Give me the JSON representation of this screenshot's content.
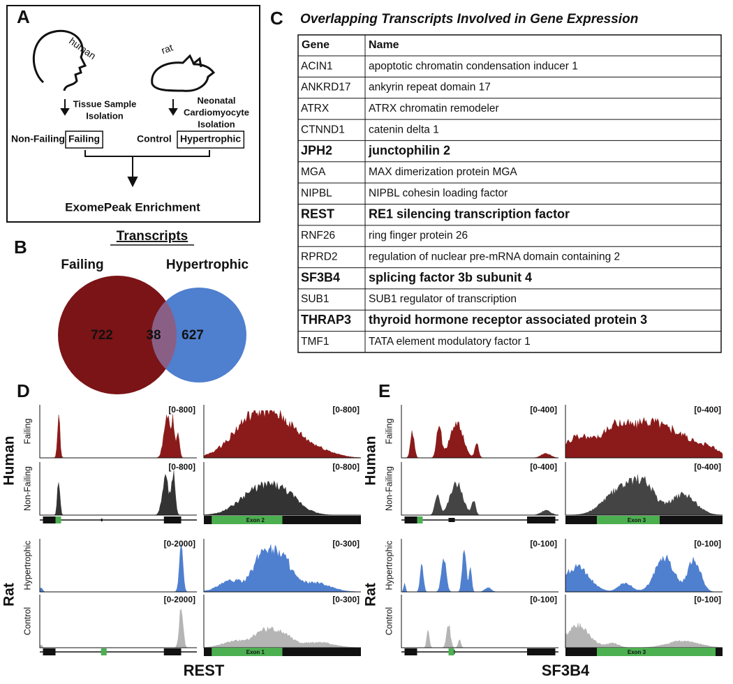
{
  "panel_a": {
    "label": "A",
    "human": "human",
    "rat": "rat",
    "human_step": [
      "Tissue Sample",
      "Isolation"
    ],
    "rat_step": [
      "Neonatal",
      "Cardiomyocyte",
      "Isolation"
    ],
    "human_groups": [
      {
        "name": "Non-Failing",
        "color": "#555555",
        "boxed": false
      },
      {
        "name": "Failing",
        "color": "#7b1416",
        "boxed": true
      }
    ],
    "rat_groups": [
      {
        "name": "Control",
        "color": "#aaaaaa",
        "boxed": false
      },
      {
        "name": "Hypertrophic",
        "color": "#4a7ccc",
        "boxed": true
      }
    ],
    "result": "ExomePeak Enrichment"
  },
  "panel_b": {
    "label": "B",
    "title": "Transcripts",
    "sets": [
      {
        "name": "Failing",
        "count": 722,
        "color": "#7b1416"
      },
      {
        "name": "Hypertrophic",
        "count": 627,
        "color": "#4f7fcf"
      }
    ],
    "overlap": 38,
    "overlap_color": "#8a5f86"
  },
  "panel_c": {
    "label": "C",
    "title": "Overlapping Transcripts Involved in Gene Expression",
    "header": [
      "Gene",
      "Name"
    ],
    "rows": [
      {
        "gene": "ACIN1",
        "name": "apoptotic chromatin condensation inducer 1",
        "bold": false
      },
      {
        "gene": "ANKRD17",
        "name": "ankyrin repeat domain 17",
        "bold": false
      },
      {
        "gene": "ATRX",
        "name": "ATRX chromatin remodeler",
        "bold": false
      },
      {
        "gene": "CTNND1",
        "name": "catenin delta 1",
        "bold": false
      },
      {
        "gene": "JPH2",
        "name": "junctophilin 2",
        "bold": true
      },
      {
        "gene": "MGA",
        "name": "MAX dimerization protein MGA",
        "bold": false
      },
      {
        "gene": "NIPBL",
        "name": "NIPBL cohesin loading factor",
        "bold": false
      },
      {
        "gene": "REST",
        "name": "RE1 silencing transcription factor",
        "bold": true
      },
      {
        "gene": "RNF26",
        "name": "ring finger protein 26",
        "bold": false
      },
      {
        "gene": "RPRD2",
        "name": "regulation of nuclear pre-mRNA domain containing 2",
        "bold": false
      },
      {
        "gene": "SF3B4",
        "name": "splicing factor 3b subunit 4",
        "bold": true
      },
      {
        "gene": "SUB1",
        "name": "SUB1 regulator of transcription",
        "bold": false
      },
      {
        "gene": "THRAP3",
        "name": "thyroid hormone receptor associated protein 3",
        "bold": true
      },
      {
        "gene": "TMF1",
        "name": "TATA element modulatory factor 1",
        "bold": false
      }
    ]
  },
  "panels_de": [
    {
      "label": "D",
      "gene": "REST",
      "species": [
        "Human",
        "Rat"
      ],
      "tracks": [
        {
          "name": "Failing",
          "scale_left": "[0-800]",
          "scale_right": "[0-800]",
          "color": "#8b1a1a"
        },
        {
          "name": "Non-Failing",
          "scale_left": "[0-800]",
          "scale_right": "[0-800]",
          "color": "#333333"
        },
        {
          "name": "Hypertrophic",
          "scale_left": "[0-2000]",
          "scale_right": "[0-300]",
          "color": "#4f7fcf"
        },
        {
          "name": "Control",
          "scale_left": "[0-2000]",
          "scale_right": "[0-300]",
          "color": "#b5b5b5"
        }
      ],
      "exons": [
        "Exon 2",
        "Exon 1"
      ]
    },
    {
      "label": "E",
      "gene": "SF3B4",
      "species": [
        "Human",
        "Rat"
      ],
      "tracks": [
        {
          "name": "Failing",
          "scale_left": "[0-400]",
          "scale_right": "[0-400]",
          "color": "#8b1a1a"
        },
        {
          "name": "Non-Failing",
          "scale_left": "[0-400]",
          "scale_right": "[0-400]",
          "color": "#444444"
        },
        {
          "name": "Hypertrophic",
          "scale_left": "[0-100]",
          "scale_right": "[0-100]",
          "color": "#4f7fcf"
        },
        {
          "name": "Control",
          "scale_left": "[0-100]",
          "scale_right": "[0-100]",
          "color": "#b5b5b5"
        }
      ],
      "exons": [
        "Exon 3",
        "Exon 3"
      ]
    }
  ]
}
